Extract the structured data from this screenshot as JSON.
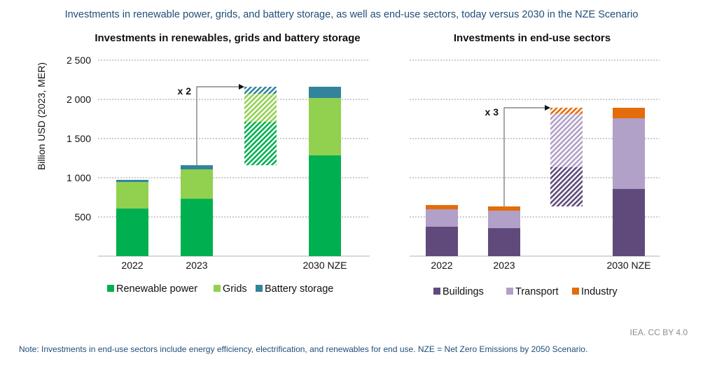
{
  "title": "Investments in renewable power, grids, and battery storage, as well as end-use sectors, today versus 2030 in the NZE Scenario",
  "credit": "IEA. CC BY 4.0",
  "note": "Note: Investments in end-use sectors include energy efficiency, electrification, and renewables for end use. NZE = Net Zero Emissions by 2050 Scenario.",
  "chart_data": [
    {
      "type": "bar",
      "stacked": true,
      "title": "Investments in renewables, grids and battery storage",
      "ylabel": "Billion USD (2023, MER)",
      "xlabel": "",
      "ylim": [
        0,
        2500
      ],
      "yticks": [
        500,
        1000,
        1500,
        2000,
        2500
      ],
      "ytick_labels": [
        "500",
        "1 000",
        "1 500",
        "2 000",
        "2 500"
      ],
      "grid": true,
      "categories": [
        "2022",
        "2023",
        "",
        "2030 NZE"
      ],
      "series": [
        {
          "name": "Renewable power",
          "color": "#00b050",
          "values": [
            607,
            732,
            null,
            1286
          ]
        },
        {
          "name": "Grids",
          "color": "#92d050",
          "values": [
            339,
            375,
            null,
            732
          ]
        },
        {
          "name": "Battery storage",
          "color": "#31849b",
          "values": [
            27,
            53,
            null,
            143
          ]
        }
      ],
      "bridge": {
        "label": "x 2",
        "from": 1160,
        "to": 2161,
        "segments": [
          554,
          357,
          90
        ]
      },
      "legend": "bottom"
    },
    {
      "type": "bar",
      "stacked": true,
      "title": "Investments in end-use sectors",
      "ylim": [
        0,
        2500
      ],
      "grid": true,
      "categories": [
        "2022",
        "2023",
        "",
        "2030 NZE"
      ],
      "series": [
        {
          "name": "Buildings",
          "color": "#604a7b",
          "values": [
            375,
            357,
            null,
            857
          ]
        },
        {
          "name": "Transport",
          "color": "#b1a0c7",
          "values": [
            223,
            223,
            null,
            902
          ]
        },
        {
          "name": "Industry",
          "color": "#e46c0a",
          "values": [
            54,
            54,
            null,
            134
          ]
        }
      ],
      "bridge": {
        "label": "x 3",
        "from": 634,
        "to": 1893,
        "segments": [
          500,
          680,
          80
        ]
      },
      "legend": "bottom"
    }
  ]
}
